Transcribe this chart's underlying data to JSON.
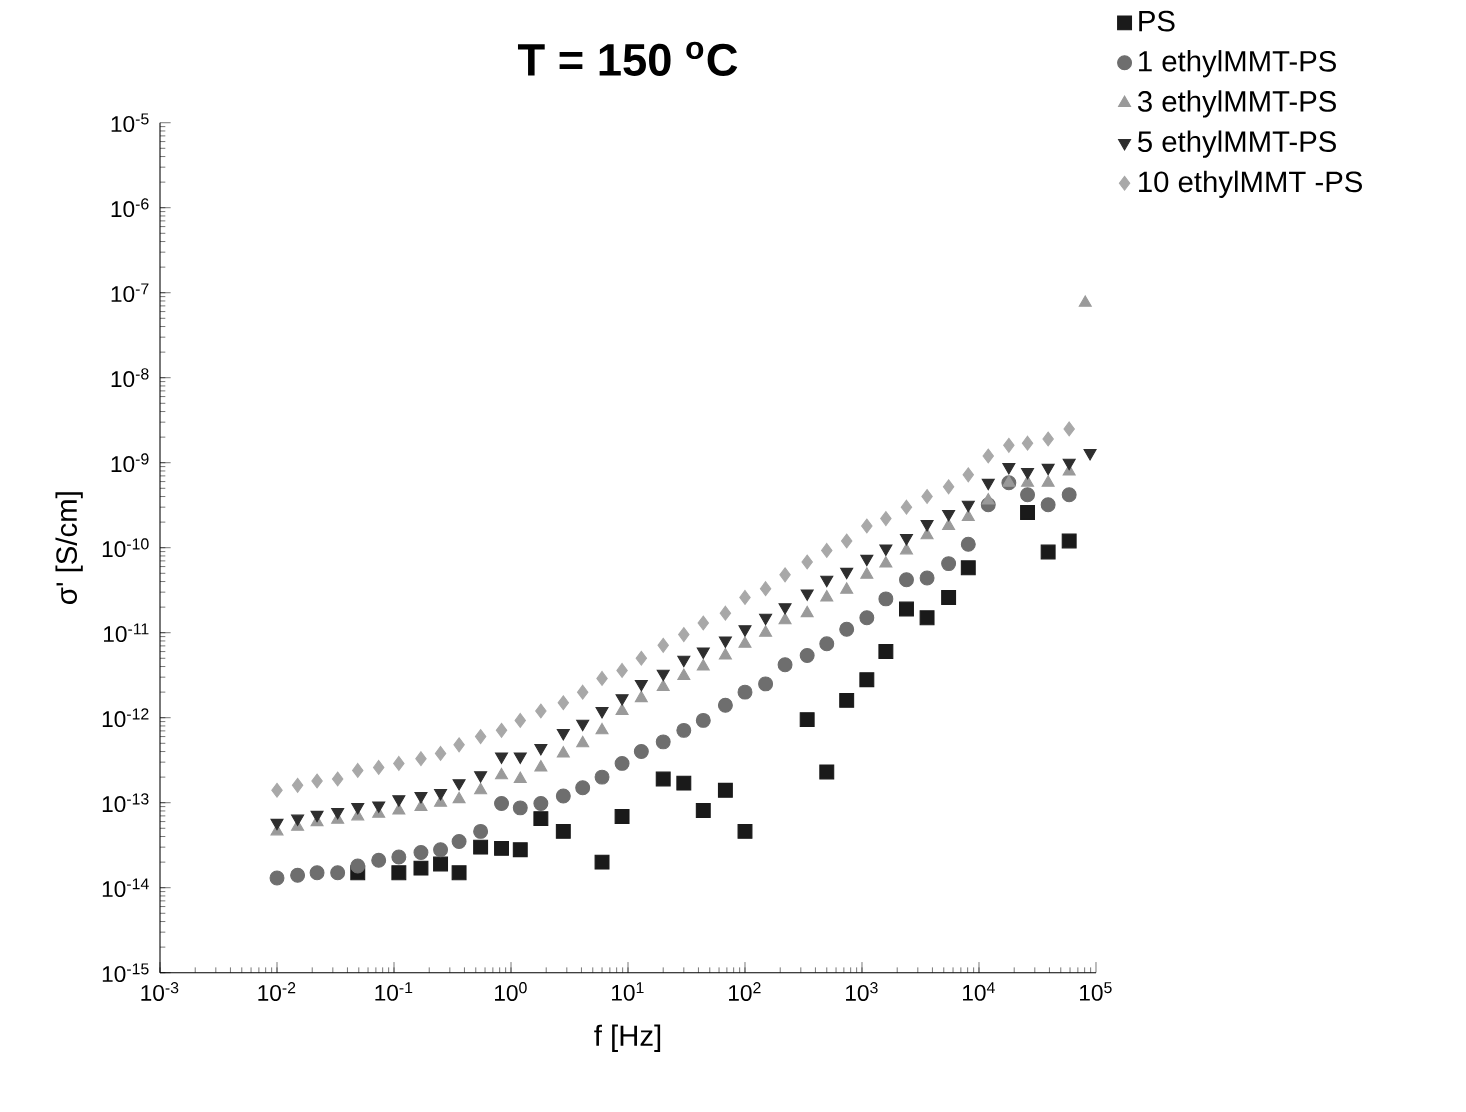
{
  "chart_data": {
    "type": "scatter",
    "title": "T = 150 $^{o}$C",
    "xlabel": "f [Hz]",
    "ylabel": "σ' [S/cm]",
    "log": "xy",
    "legend": "top right",
    "xlim": [
      0.001,
      100000
    ],
    "ylim": [
      1e-15,
      1e-05
    ],
    "xticks": [
      {
        "value": 0.001,
        "label": "10$^{-3}$"
      },
      {
        "value": 0.01,
        "label": "10$^{-2}$"
      },
      {
        "value": 0.1,
        "label": "10$^{-1}$"
      },
      {
        "value": 1,
        "label": "10$^{0}$"
      },
      {
        "value": 10,
        "label": "10$^{1}$"
      },
      {
        "value": 100,
        "label": "10$^{2}$"
      },
      {
        "value": 1000,
        "label": "10$^{3}$"
      },
      {
        "value": 10000,
        "label": "10$^{4}$"
      },
      {
        "value": 100000,
        "label": "10$^{5}$"
      }
    ],
    "yticks": [
      {
        "value": 1e-15,
        "label": "10$^{-15}$"
      },
      {
        "value": 1e-14,
        "label": "10$^{-14}$"
      },
      {
        "value": 1e-13,
        "label": "10$^{-13}$"
      },
      {
        "value": 1e-12,
        "label": "10$^{-12}$"
      },
      {
        "value": 1e-11,
        "label": "10$^{-11}$"
      },
      {
        "value": 1e-10,
        "label": "10$^{-10}$"
      },
      {
        "value": 1e-09,
        "label": "10$^{-9}$"
      },
      {
        "value": 1e-08,
        "label": "10$^{-8}$"
      },
      {
        "value": 1e-07,
        "label": "10$^{-7}$"
      },
      {
        "value": 1e-06,
        "label": "10$^{-6}$"
      },
      {
        "value": 1e-05,
        "label": "10$^{-5}$"
      }
    ],
    "series": [
      {
        "name": "PS",
        "color": "#1a1a1a",
        "marker": "square",
        "x": [
          0.049,
          0.11,
          0.17,
          0.25,
          0.36,
          0.55,
          0.83,
          1.2,
          1.8,
          2.8,
          6.0,
          8.9,
          20,
          30,
          44,
          68,
          100,
          340,
          500,
          740,
          1100,
          1600,
          2400,
          3600,
          5500,
          8100,
          26000,
          39000,
          59000
        ],
        "values": [
          1.5e-14,
          1.5e-14,
          1.7e-14,
          1.9e-14,
          1.5e-14,
          3e-14,
          2.9e-14,
          2.8e-14,
          6.5e-14,
          4.6e-14,
          2e-14,
          6.9e-14,
          1.9e-13,
          1.7e-13,
          8.1e-14,
          1.4e-13,
          4.6e-14,
          9.5e-13,
          2.3e-13,
          1.6e-12,
          2.8e-12,
          6e-12,
          1.9e-11,
          1.5e-11,
          2.6e-11,
          5.8e-11,
          2.6e-10,
          8.9e-11,
          1.2e-10
        ]
      },
      {
        "name": "1 ethylMMT-PS",
        "color": "#6e6e6e",
        "marker": "circle",
        "x": [
          0.01,
          0.015,
          0.022,
          0.033,
          0.049,
          0.074,
          0.11,
          0.17,
          0.25,
          0.36,
          0.55,
          0.83,
          1.2,
          1.8,
          2.8,
          4.1,
          6.0,
          8.9,
          13,
          20,
          30,
          44,
          68,
          100,
          150,
          220,
          340,
          500,
          740,
          1100,
          1600,
          2400,
          3600,
          5500,
          8100,
          12000,
          18000,
          26000,
          39000,
          59000
        ],
        "values": [
          1.3e-14,
          1.4e-14,
          1.5e-14,
          1.5e-14,
          1.8e-14,
          2.1e-14,
          2.3e-14,
          2.6e-14,
          2.8e-14,
          3.5e-14,
          4.6e-14,
          9.8e-14,
          8.7e-14,
          9.8e-14,
          1.2e-13,
          1.5e-13,
          2e-13,
          2.9e-13,
          4e-13,
          5.2e-13,
          7.1e-13,
          9.3e-13,
          1.4e-12,
          2e-12,
          2.5e-12,
          4.2e-12,
          5.4e-12,
          7.4e-12,
          1.1e-11,
          1.5e-11,
          2.5e-11,
          4.2e-11,
          4.4e-11,
          6.5e-11,
          1.1e-10,
          3.2e-10,
          5.8e-10,
          4.2e-10,
          3.2e-10,
          4.2e-10
        ]
      },
      {
        "name": "3 ethylMMT-PS",
        "color": "#9a9a9a",
        "marker": "triangle",
        "x": [
          0.01,
          0.015,
          0.022,
          0.033,
          0.049,
          0.074,
          0.11,
          0.17,
          0.25,
          0.36,
          0.55,
          0.83,
          1.2,
          1.8,
          2.8,
          4.1,
          6.0,
          8.9,
          13,
          20,
          30,
          44,
          68,
          100,
          150,
          220,
          340,
          500,
          740,
          1100,
          1600,
          2400,
          3600,
          5500,
          8100,
          12000,
          18000,
          26000,
          39000,
          59000,
          81000
        ],
        "values": [
          4.6e-14,
          5.2e-14,
          5.9e-14,
          6.3e-14,
          6.9e-14,
          7.4e-14,
          8.1e-14,
          8.9e-14,
          1e-13,
          1.1e-13,
          1.4e-13,
          2.1e-13,
          1.9e-13,
          2.6e-13,
          3.8e-13,
          5e-13,
          7.1e-13,
          1.2e-12,
          1.7e-12,
          2.3e-12,
          3.1e-12,
          4e-12,
          5.4e-12,
          7.4e-12,
          1e-11,
          1.4e-11,
          1.7e-11,
          2.6e-11,
          3.2e-11,
          4.8e-11,
          6.5e-11,
          9.3e-11,
          1.4e-10,
          1.8e-10,
          2.3e-10,
          3.6e-10,
          5.8e-10,
          5.8e-10,
          5.8e-10,
          7.9e-10,
          7.6e-08
        ]
      },
      {
        "name": "5 ethylMMT-PS",
        "color": "#2e2e2e",
        "marker": "triangle-down",
        "x": [
          0.01,
          0.015,
          0.022,
          0.033,
          0.049,
          0.074,
          0.11,
          0.17,
          0.25,
          0.36,
          0.55,
          0.83,
          1.2,
          1.8,
          2.8,
          4.1,
          6.0,
          8.9,
          13,
          20,
          30,
          44,
          68,
          100,
          150,
          220,
          340,
          500,
          740,
          1100,
          1600,
          2400,
          3600,
          5500,
          8100,
          12000,
          18000,
          26000,
          39000,
          59000,
          89000
        ],
        "values": [
          5.8e-14,
          6.5e-14,
          7.2e-14,
          7.8e-14,
          8.9e-14,
          9.3e-14,
          1.1e-13,
          1.2e-13,
          1.3e-13,
          1.7e-13,
          2.1e-13,
          3.5e-13,
          3.5e-13,
          4.4e-13,
          6.6e-13,
          8.5e-13,
          1.2e-12,
          1.7e-12,
          2.5e-12,
          3.3e-12,
          4.8e-12,
          6e-12,
          8.1e-12,
          1.1e-11,
          1.5e-11,
          2e-11,
          2.9e-11,
          4.2e-11,
          5.2e-11,
          7.4e-11,
          9.8e-11,
          1.3e-10,
          1.9e-10,
          2.5e-10,
          3.2e-10,
          5.8e-10,
          8.9e-10,
          7.8e-10,
          8.7e-10,
          1e-09,
          1.3e-09
        ]
      },
      {
        "name": "10 ethylMMT -PS",
        "color": "#a8a8a8",
        "marker": "diamond",
        "x": [
          0.01,
          0.015,
          0.022,
          0.033,
          0.049,
          0.074,
          0.11,
          0.17,
          0.25,
          0.36,
          0.55,
          0.83,
          1.2,
          1.8,
          2.8,
          4.1,
          6.0,
          8.9,
          13,
          20,
          30,
          44,
          68,
          100,
          150,
          220,
          340,
          500,
          740,
          1100,
          1600,
          2400,
          3600,
          5500,
          8100,
          12000,
          18000,
          26000,
          39000,
          59000
        ],
        "values": [
          1.4e-13,
          1.6e-13,
          1.8e-13,
          1.9e-13,
          2.4e-13,
          2.6e-13,
          2.9e-13,
          3.3e-13,
          3.8e-13,
          4.8e-13,
          6e-13,
          7.1e-13,
          9.3e-13,
          1.2e-12,
          1.5e-12,
          2e-12,
          2.9e-12,
          3.6e-12,
          5e-12,
          7.1e-12,
          9.5e-12,
          1.3e-11,
          1.7e-11,
          2.6e-11,
          3.3e-11,
          4.8e-11,
          6.8e-11,
          9.3e-11,
          1.2e-10,
          1.8e-10,
          2.2e-10,
          3e-10,
          4e-10,
          5.2e-10,
          7.2e-10,
          1.2e-09,
          1.6e-09,
          1.7e-09,
          1.9e-09,
          2.5e-09
        ]
      }
    ]
  }
}
